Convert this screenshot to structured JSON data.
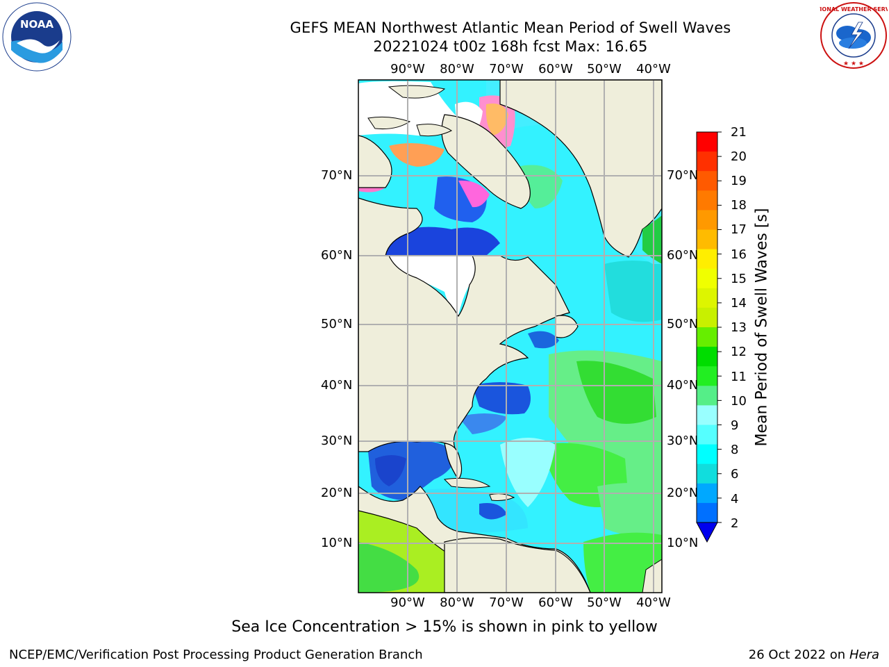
{
  "title": {
    "line1": "GEFS MEAN Northwest Atlantic Mean Period of Swell Waves",
    "line2": "20221024 t00z 168h fcst   Max: 16.65"
  },
  "map": {
    "lon_labels": [
      "90°W",
      "80°W",
      "70°W",
      "60°W",
      "50°W",
      "40°W"
    ],
    "lat_labels": [
      "70°N",
      "60°N",
      "50°N",
      "40°N",
      "30°N",
      "20°N",
      "10°N"
    ],
    "land_color": "#efeedb",
    "grid_color": "#b0b0b0"
  },
  "colorbar": {
    "title": "Mean Period of Swell Waves [s]",
    "ticks": [
      "21",
      "20",
      "19",
      "18",
      "17",
      "16",
      "15",
      "14",
      "13",
      "12",
      "11",
      "10",
      "9",
      "8",
      "6",
      "4",
      "2"
    ],
    "colors": [
      "#ff0000",
      "#ff3000",
      "#ff5a00",
      "#ff7a00",
      "#ff9900",
      "#ffbb00",
      "#ffee00",
      "#f0ff00",
      "#ddf500",
      "#c8f000",
      "#66ee00",
      "#00dd00",
      "#22ee22",
      "#55ee88",
      "#99ffff",
      "#55ffff",
      "#00ffff",
      "#11dddd",
      "#00a8ff",
      "#0070ff"
    ],
    "under_color": "#0000ee"
  },
  "note": "Sea Ice Concentration > 15% is shown in pink to yellow",
  "footer": {
    "left": "NCEP/EMC/Verification Post Processing Product Generation Branch",
    "right_prefix": "26 Oct 2022 on ",
    "right_host": "Hera"
  },
  "logos": {
    "noaa_text": "NOAA",
    "nws_text": "NATIONAL WEATHER SERVICE"
  }
}
